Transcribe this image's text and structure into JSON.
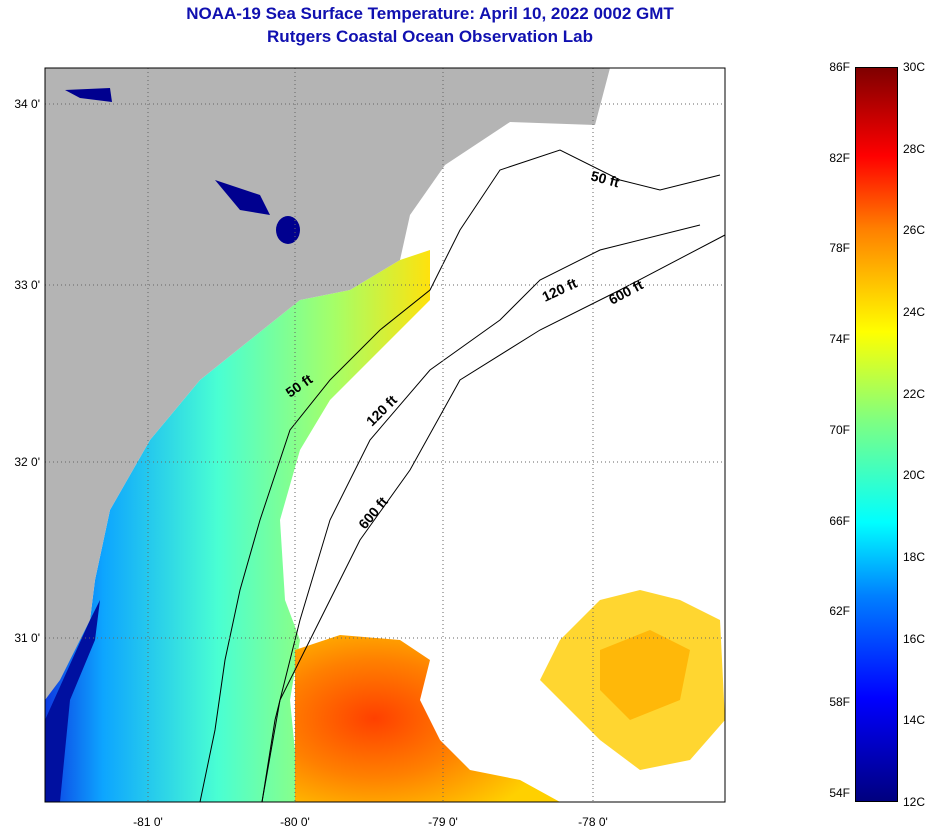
{
  "title": {
    "line1": "NOAA-19 Sea Surface Temperature:  April 10, 2022 0002 GMT",
    "line2": "Rutgers Coastal Ocean Observation Lab"
  },
  "axes": {
    "lat_labels": [
      "34 0'",
      "33 0'",
      "32 0'",
      "31 0'"
    ],
    "lon_labels": [
      "-81 0'",
      "-80 0'",
      "-79 0'",
      "-78 0'"
    ]
  },
  "contours": {
    "c50a": "50 ft",
    "c50b": "50 ft",
    "c120a": "120 ft",
    "c120b": "120 ft",
    "c600a": "600 ft",
    "c600b": "600 ft"
  },
  "colorbar": {
    "fahrenheit": [
      "86F",
      "82F",
      "78F",
      "74F",
      "70F",
      "66F",
      "62F",
      "58F",
      "54F"
    ],
    "celsius": [
      "30C",
      "28C",
      "26C",
      "24C",
      "22C",
      "20C",
      "18C",
      "16C",
      "14C",
      "12C"
    ],
    "range_c": [
      12,
      30
    ]
  },
  "colors": {
    "land": "#b4b4b4",
    "title": "#1010b0",
    "cloud": "#ffffff"
  }
}
